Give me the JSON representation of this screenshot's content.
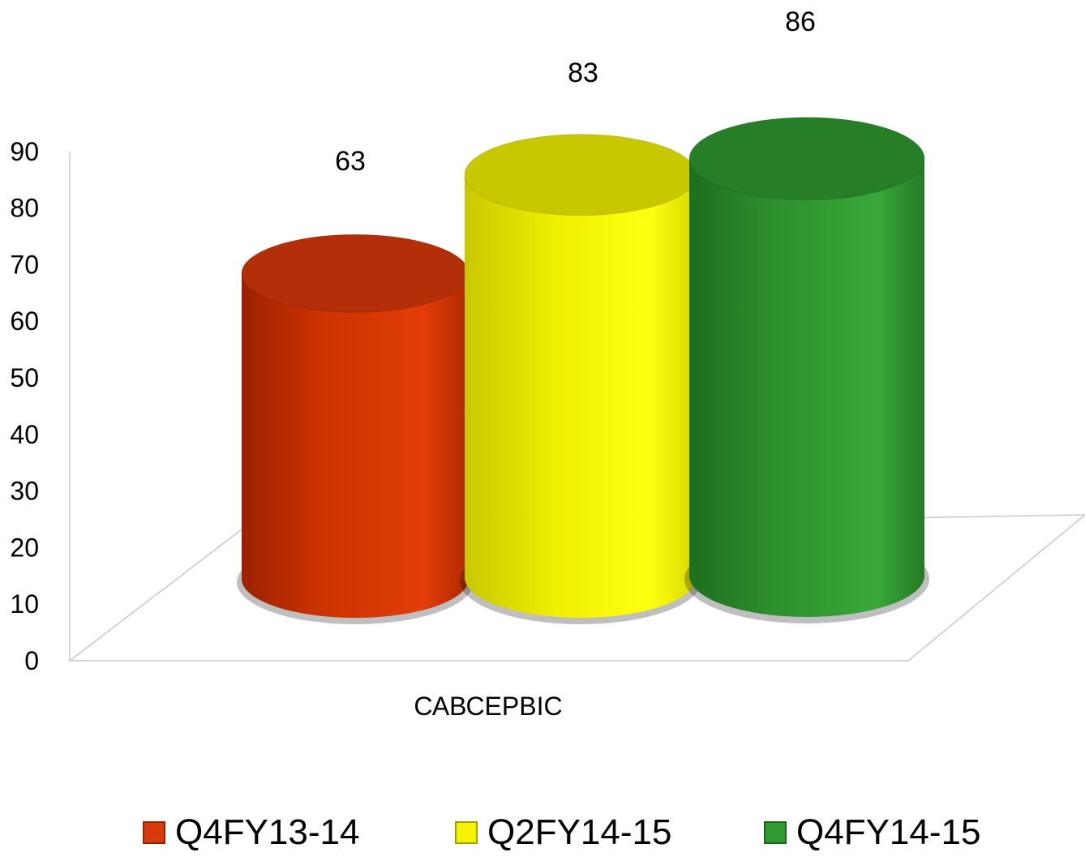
{
  "chart_data": {
    "type": "bar",
    "style": "3d-cylinder",
    "categories": [
      "САВСЕРВІС"
    ],
    "series": [
      {
        "name": "Q4FY13-14",
        "values": [
          63
        ],
        "color": "#D93A0C"
      },
      {
        "name": "Q2FY14-15",
        "values": [
          83
        ],
        "color": "#F4F400"
      },
      {
        "name": "Q4FY14-15",
        "values": [
          86
        ],
        "color": "#2F9A30"
      }
    ],
    "ylim": [
      0,
      90
    ],
    "yticks": [
      "0",
      "10",
      "20",
      "30",
      "40",
      "50",
      "60",
      "70",
      "80",
      "90"
    ],
    "data_labels": [
      "63",
      "83",
      "86"
    ],
    "grid": false,
    "legend_position": "bottom"
  }
}
